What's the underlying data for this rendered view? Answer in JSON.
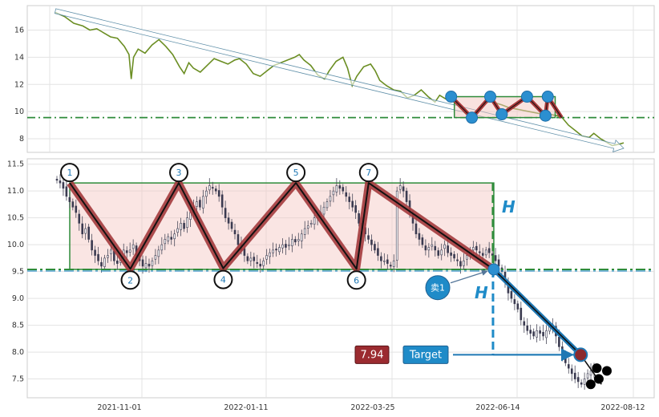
{
  "chart_data": [
    {
      "type": "line",
      "panel": "overview",
      "title": "",
      "xlabel": "",
      "ylabel": "",
      "ylim": [
        7,
        17.8
      ],
      "y_ticks": [
        8,
        10,
        12,
        14,
        16
      ],
      "grid": true,
      "line_color": "#6b8e23",
      "price_series": [
        [
          0,
          17.3
        ],
        [
          8,
          17.0
        ],
        [
          16,
          16.5
        ],
        [
          24,
          16.3
        ],
        [
          30,
          16.0
        ],
        [
          36,
          16.1
        ],
        [
          42,
          15.8
        ],
        [
          48,
          15.5
        ],
        [
          54,
          15.4
        ],
        [
          60,
          14.8
        ],
        [
          64,
          14.2
        ],
        [
          66,
          12.4
        ],
        [
          68,
          14.0
        ],
        [
          72,
          14.6
        ],
        [
          78,
          14.3
        ],
        [
          84,
          14.9
        ],
        [
          90,
          15.3
        ],
        [
          96,
          14.8
        ],
        [
          102,
          14.2
        ],
        [
          108,
          13.3
        ],
        [
          112,
          12.8
        ],
        [
          116,
          13.6
        ],
        [
          120,
          13.2
        ],
        [
          126,
          12.9
        ],
        [
          132,
          13.4
        ],
        [
          138,
          13.9
        ],
        [
          144,
          13.7
        ],
        [
          150,
          13.5
        ],
        [
          156,
          13.8
        ],
        [
          160,
          13.9
        ],
        [
          166,
          13.5
        ],
        [
          172,
          12.8
        ],
        [
          178,
          12.6
        ],
        [
          184,
          13.0
        ],
        [
          190,
          13.4
        ],
        [
          196,
          13.6
        ],
        [
          202,
          13.8
        ],
        [
          208,
          14.0
        ],
        [
          212,
          14.2
        ],
        [
          216,
          13.8
        ],
        [
          222,
          13.4
        ],
        [
          228,
          12.7
        ],
        [
          234,
          12.4
        ],
        [
          238,
          13.0
        ],
        [
          244,
          13.7
        ],
        [
          250,
          14.0
        ],
        [
          254,
          13.2
        ],
        [
          258,
          11.9
        ],
        [
          262,
          12.6
        ],
        [
          268,
          13.3
        ],
        [
          274,
          13.5
        ],
        [
          278,
          13.0
        ],
        [
          282,
          12.3
        ],
        [
          288,
          11.9
        ],
        [
          294,
          11.6
        ],
        [
          300,
          11.5
        ],
        [
          306,
          11.0
        ],
        [
          312,
          11.2
        ],
        [
          318,
          11.6
        ],
        [
          324,
          11.1
        ],
        [
          330,
          10.7
        ],
        [
          334,
          11.2
        ],
        [
          340,
          10.9
        ],
        [
          344,
          10.9
        ],
        [
          350,
          10.4
        ],
        [
          356,
          9.9
        ],
        [
          360,
          9.6
        ],
        [
          366,
          10.0
        ],
        [
          372,
          10.5
        ],
        [
          378,
          10.8
        ],
        [
          384,
          10.6
        ],
        [
          388,
          10.5
        ],
        [
          394,
          10.3
        ],
        [
          400,
          10.2
        ],
        [
          406,
          10.1
        ],
        [
          412,
          10.0
        ],
        [
          418,
          9.9
        ],
        [
          424,
          9.8
        ],
        [
          430,
          9.8
        ],
        [
          436,
          9.7
        ],
        [
          440,
          9.6
        ],
        [
          446,
          9.0
        ],
        [
          452,
          8.6
        ],
        [
          458,
          8.2
        ],
        [
          464,
          8.1
        ],
        [
          468,
          8.4
        ],
        [
          474,
          8.0
        ],
        [
          478,
          7.8
        ],
        [
          484,
          7.5
        ],
        [
          490,
          7.6
        ],
        [
          494,
          7.7
        ]
      ],
      "trend_arrow_x": [
        0,
        494
      ],
      "trend_arrow_y": [
        17.4,
        7.3
      ],
      "support_level": 9.56,
      "resistance_level": 11.1,
      "pattern_box_x": [
        344,
        440
      ],
      "pattern_points_x": [
        344,
        356,
        374,
        388,
        406,
        412,
        426,
        440
      ],
      "pattern_points_y": [
        11.1,
        9.55,
        11.1,
        9.6,
        11.1,
        9.58,
        11.1,
        9.56
      ],
      "pattern_markers": [
        {
          "x": 344,
          "y": 11.1
        },
        {
          "x": 362,
          "y": 9.55
        },
        {
          "x": 378,
          "y": 11.1
        },
        {
          "x": 388,
          "y": 9.8
        },
        {
          "x": 410,
          "y": 11.1
        },
        {
          "x": 426,
          "y": 9.7
        },
        {
          "x": 428,
          "y": 11.1
        }
      ],
      "x_ticks": [
        "2021-11-01",
        "2022-01-11",
        "2022-03-25",
        "2022-06-14",
        "2022-08-12"
      ]
    },
    {
      "type": "candlestick",
      "panel": "detail",
      "title": "",
      "xlabel": "",
      "ylabel": "",
      "ylim": [
        7.15,
        11.6
      ],
      "y_ticks": [
        "7.5",
        "8.0",
        "8.5",
        "9.0",
        "9.5",
        "10.0",
        "10.5",
        "11.0",
        "11.5"
      ],
      "x_ticks": [
        "2021-11-01",
        "2022-01-11",
        "2022-03-25",
        "2022-06-14",
        "2022-08-12"
      ],
      "grid": true,
      "support_level": 9.54,
      "resistance_level": 11.15,
      "box_x": [
        0,
        210
      ],
      "pivots": [
        {
          "label": "1",
          "x": 0,
          "y": 11.15
        },
        {
          "label": "2",
          "x": 30,
          "y": 9.55
        },
        {
          "label": "3",
          "x": 54,
          "y": 11.15
        },
        {
          "label": "4",
          "x": 76,
          "y": 9.56
        },
        {
          "label": "5",
          "x": 112,
          "y": 11.15
        },
        {
          "label": "6",
          "x": 142,
          "y": 9.55
        },
        {
          "label": "7",
          "x": 148,
          "y": 11.15
        }
      ],
      "breakout_point": {
        "x": 210,
        "y": 9.54
      },
      "target_point": {
        "x": 253,
        "y": 7.95
      },
      "tail_points": [
        [
          258,
          7.4
        ],
        [
          261,
          7.7
        ],
        [
          262,
          7.5
        ],
        [
          266,
          7.65
        ]
      ],
      "sell_label": "卖1",
      "height_label": "H",
      "target_label": "Target",
      "target_value": "7.94",
      "closes": [
        11.2,
        11.15,
        11.05,
        10.9,
        10.8,
        10.7,
        10.6,
        10.4,
        10.2,
        10.3,
        10.1,
        9.9,
        9.8,
        9.7,
        9.6,
        9.75,
        9.8,
        9.9,
        9.7,
        9.65,
        9.8,
        9.9,
        9.85,
        9.9,
        10.0,
        9.8,
        9.7,
        9.6,
        9.65,
        9.6,
        9.7,
        9.8,
        9.9,
        10.0,
        10.1,
        10.15,
        10.1,
        10.2,
        10.3,
        10.4,
        10.3,
        10.5,
        10.6,
        10.7,
        10.8,
        10.7,
        10.9,
        11.0,
        11.1,
        11.05,
        11.0,
        10.9,
        10.7,
        10.5,
        10.4,
        10.3,
        10.2,
        10.0,
        9.9,
        9.8,
        9.7,
        9.75,
        9.7,
        9.65,
        9.6,
        9.7,
        9.8,
        9.85,
        9.9,
        9.9,
        9.95,
        10.0,
        9.95,
        10.0,
        10.1,
        10.05,
        10.1,
        10.2,
        10.3,
        10.35,
        10.4,
        10.5,
        10.55,
        10.6,
        10.7,
        10.8,
        10.9,
        11.0,
        11.1,
        11.05,
        11.0,
        10.9,
        10.8,
        10.7,
        10.6,
        10.4,
        10.3,
        10.2,
        10.1,
        10.0,
        9.9,
        9.8,
        9.7,
        9.7,
        9.65,
        9.6,
        9.7,
        11.0,
        11.1,
        11.0,
        10.8,
        10.6,
        10.4,
        10.2,
        10.1,
        10.0,
        9.9,
        9.95,
        10.0,
        9.9,
        9.8,
        9.9,
        10.0,
        9.85,
        9.8,
        9.75,
        9.7,
        9.6,
        9.7,
        9.8,
        9.9,
        9.95,
        9.9,
        9.85,
        9.8,
        9.9,
        9.85,
        9.8,
        9.7,
        9.6,
        9.5,
        9.3,
        9.1,
        9.0,
        8.9,
        8.8,
        8.6,
        8.5,
        8.4,
        8.35,
        8.3,
        8.4,
        8.35,
        8.3,
        8.4,
        8.5,
        8.45,
        8.3,
        8.1,
        7.95,
        7.8,
        7.7,
        7.6,
        7.5,
        7.45,
        7.4,
        7.5,
        7.6,
        7.65,
        7.7
      ]
    }
  ]
}
